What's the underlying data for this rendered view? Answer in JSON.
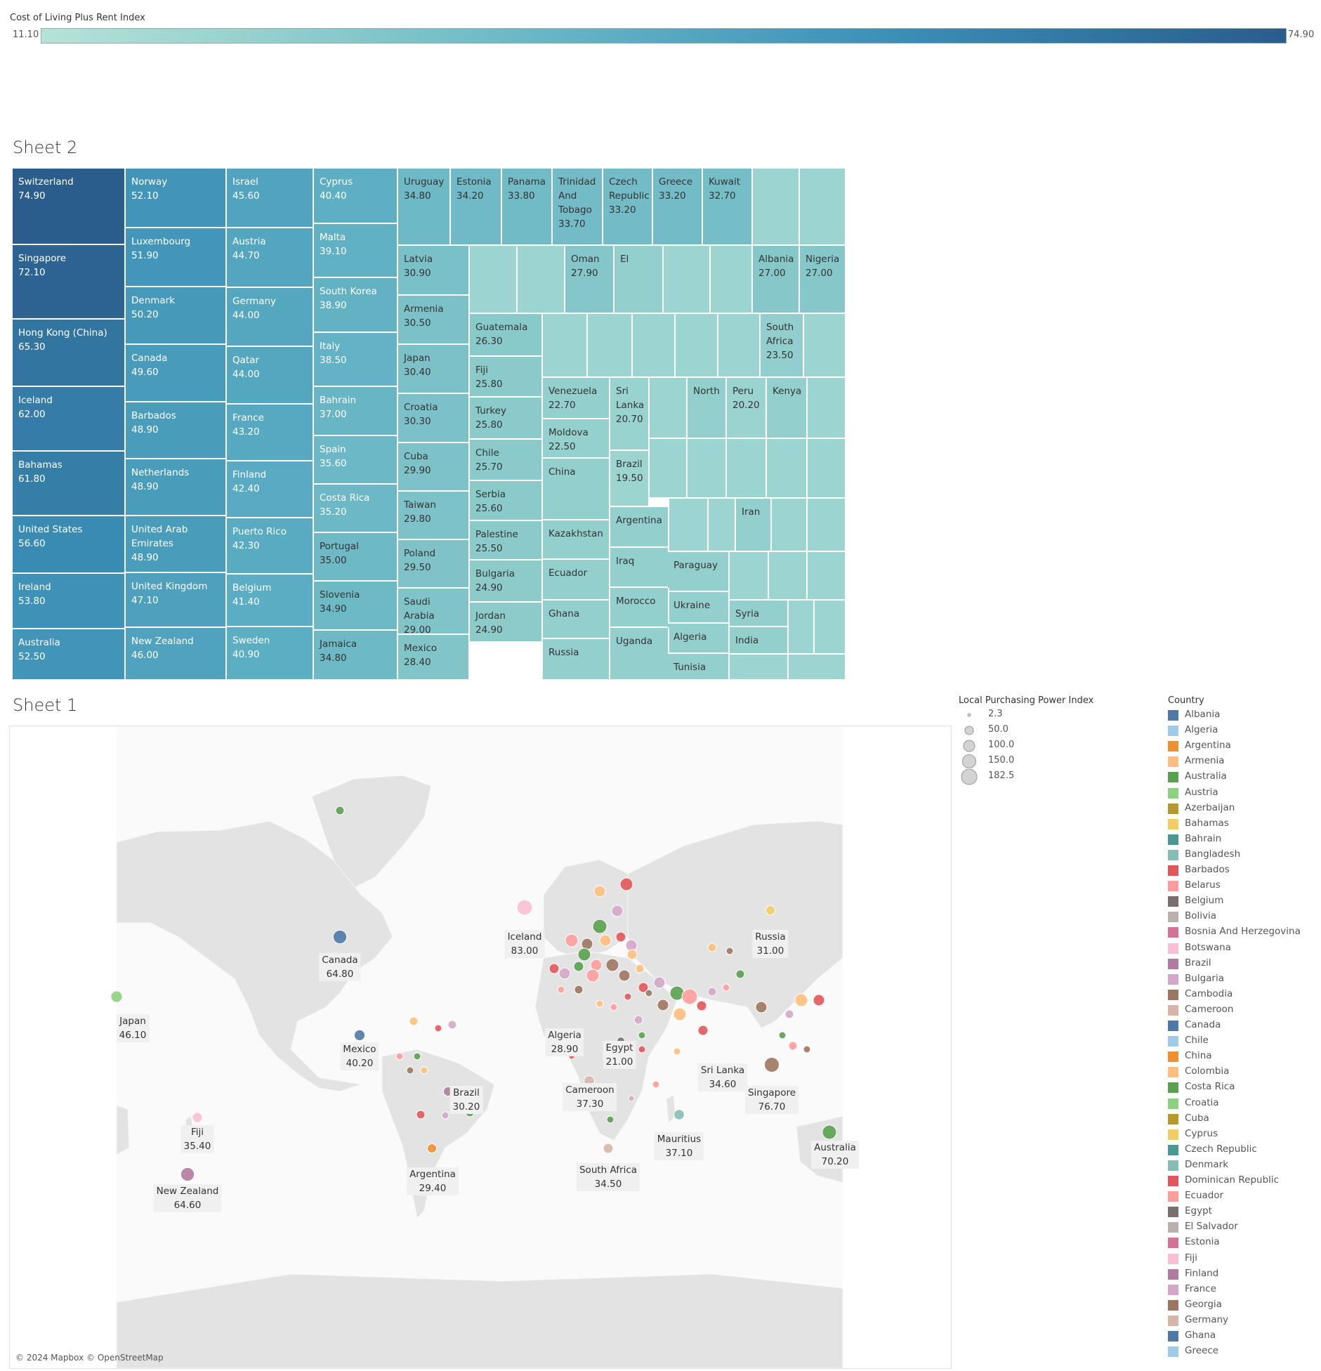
{
  "colorbar": {
    "title": "Cost of Living Plus Rent Index",
    "min": "11.10",
    "max": "74.90"
  },
  "sheet2": {
    "title": "Sheet 2"
  },
  "sheet1": {
    "title": "Sheet 1",
    "credit": "© 2024 Mapbox © OpenStreetMap"
  },
  "chart_data": [
    {
      "type": "treemap",
      "title": "Sheet 2",
      "measure": "Cost of Living Plus Rent Index",
      "color_range": [
        11.1,
        74.9
      ],
      "items": [
        {
          "name": "Switzerland",
          "value": 74.9
        },
        {
          "name": "Singapore",
          "value": 72.1
        },
        {
          "name": "Hong Kong (China)",
          "value": 65.3
        },
        {
          "name": "Iceland",
          "value": 62.0
        },
        {
          "name": "Bahamas",
          "value": 61.8
        },
        {
          "name": "United States",
          "value": 56.6
        },
        {
          "name": "Ireland",
          "value": 53.8
        },
        {
          "name": "Australia",
          "value": 52.5
        },
        {
          "name": "Norway",
          "value": 52.1
        },
        {
          "name": "Luxembourg",
          "value": 51.9
        },
        {
          "name": "Denmark",
          "value": 50.2
        },
        {
          "name": "Canada",
          "value": 49.6
        },
        {
          "name": "Barbados",
          "value": 48.9
        },
        {
          "name": "Netherlands",
          "value": 48.9
        },
        {
          "name": "United Arab Emirates",
          "value": 48.9
        },
        {
          "name": "United Kingdom",
          "value": 47.1
        },
        {
          "name": "New Zealand",
          "value": 46.0
        },
        {
          "name": "Israel",
          "value": 45.6
        },
        {
          "name": "Austria",
          "value": 44.7
        },
        {
          "name": "Germany",
          "value": 44.0
        },
        {
          "name": "Qatar",
          "value": 44.0
        },
        {
          "name": "France",
          "value": 43.2
        },
        {
          "name": "Finland",
          "value": 42.4
        },
        {
          "name": "Puerto Rico",
          "value": 42.3
        },
        {
          "name": "Belgium",
          "value": 41.4
        },
        {
          "name": "Sweden",
          "value": 40.9
        },
        {
          "name": "Cyprus",
          "value": 40.4
        },
        {
          "name": "Malta",
          "value": 39.1
        },
        {
          "name": "South Korea",
          "value": 38.9
        },
        {
          "name": "Italy",
          "value": 38.5
        },
        {
          "name": "Bahrain",
          "value": 37.0
        },
        {
          "name": "Spain",
          "value": 35.6
        },
        {
          "name": "Costa Rica",
          "value": 35.2
        },
        {
          "name": "Portugal",
          "value": 35.0
        },
        {
          "name": "Slovenia",
          "value": 34.9
        },
        {
          "name": "Jamaica",
          "value": 34.8
        },
        {
          "name": "Uruguay",
          "value": 34.8
        },
        {
          "name": "Estonia",
          "value": 34.2
        },
        {
          "name": "Panama",
          "value": 33.8
        },
        {
          "name": "Trinidad And Tobago",
          "value": 33.7
        },
        {
          "name": "Czech Republic",
          "value": 33.2
        },
        {
          "name": "Greece",
          "value": 33.2
        },
        {
          "name": "Kuwait",
          "value": 32.7
        },
        {
          "name": "Latvia",
          "value": 30.9
        },
        {
          "name": "Armenia",
          "value": 30.5
        },
        {
          "name": "Japan",
          "value": 30.4
        },
        {
          "name": "Croatia",
          "value": 30.3
        },
        {
          "name": "Cuba",
          "value": 29.9
        },
        {
          "name": "Taiwan",
          "value": 29.8
        },
        {
          "name": "Poland",
          "value": 29.5
        },
        {
          "name": "Saudi Arabia",
          "value": 29.0
        },
        {
          "name": "Mexico",
          "value": 28.4
        },
        {
          "name": "Oman",
          "value": 27.9
        },
        {
          "name": "El",
          "value": null
        },
        {
          "name": "Albania",
          "value": 27.0
        },
        {
          "name": "Nigeria",
          "value": 27.0
        },
        {
          "name": "Guatemala",
          "value": 26.3
        },
        {
          "name": "Fiji",
          "value": 25.8
        },
        {
          "name": "Turkey",
          "value": 25.8
        },
        {
          "name": "Chile",
          "value": 25.7
        },
        {
          "name": "Serbia",
          "value": 25.6
        },
        {
          "name": "Palestine",
          "value": 25.5
        },
        {
          "name": "Bulgaria",
          "value": 24.9
        },
        {
          "name": "Jordan",
          "value": 24.9
        },
        {
          "name": "South Africa",
          "value": 23.5
        },
        {
          "name": "Venezuela",
          "value": 22.7
        },
        {
          "name": "Moldova",
          "value": 22.5
        },
        {
          "name": "Sri Lanka",
          "value": 20.7
        },
        {
          "name": "Peru",
          "value": 20.2
        },
        {
          "name": "Brazil",
          "value": 19.5
        },
        {
          "name": "North",
          "value": null
        },
        {
          "name": "Kenya",
          "value": null
        },
        {
          "name": "China",
          "value": null
        },
        {
          "name": "Kazakhstan",
          "value": null
        },
        {
          "name": "Iran",
          "value": null
        },
        {
          "name": "Argentina",
          "value": null
        },
        {
          "name": "Ecuador",
          "value": null
        },
        {
          "name": "Iraq",
          "value": null
        },
        {
          "name": "Paraguay",
          "value": null
        },
        {
          "name": "Ukraine",
          "value": null
        },
        {
          "name": "Ghana",
          "value": null
        },
        {
          "name": "Morocco",
          "value": null
        },
        {
          "name": "Algeria",
          "value": null
        },
        {
          "name": "Syria",
          "value": null
        },
        {
          "name": "India",
          "value": null
        },
        {
          "name": "Russia",
          "value": null
        },
        {
          "name": "Uganda",
          "value": null
        },
        {
          "name": "Tunisia",
          "value": null
        }
      ]
    },
    {
      "type": "symbol-map",
      "title": "Sheet 1",
      "size_measure": "Local Purchasing Power Index",
      "size_legend": [
        "2.3",
        "50.0",
        "100.0",
        "150.0",
        "182.5"
      ],
      "labeled_points": [
        {
          "name": "Japan",
          "value": "46.10"
        },
        {
          "name": "Canada",
          "value": "64.80"
        },
        {
          "name": "Iceland",
          "value": "83.00"
        },
        {
          "name": "Russia",
          "value": "31.00"
        },
        {
          "name": "Mexico",
          "value": "40.20"
        },
        {
          "name": "Algeria",
          "value": "28.90"
        },
        {
          "name": "Egypt",
          "value": "21.00"
        },
        {
          "name": "Sri Lanka",
          "value": "34.60"
        },
        {
          "name": "Singapore",
          "value": "76.70"
        },
        {
          "name": "Cameroon",
          "value": "37.30"
        },
        {
          "name": "Fiji",
          "value": "35.40"
        },
        {
          "name": "Brazil",
          "value": "30.20"
        },
        {
          "name": "Mauritius",
          "value": "37.10"
        },
        {
          "name": "Australia",
          "value": "70.20"
        },
        {
          "name": "New Zealand",
          "value": "64.60"
        },
        {
          "name": "Argentina",
          "value": "29.40"
        },
        {
          "name": "South Africa",
          "value": "34.50"
        }
      ]
    }
  ],
  "legend": {
    "size_title": "Local Purchasing Power Index",
    "country_title": "Country",
    "countries": [
      {
        "name": "Albania",
        "color": "#4e79a7"
      },
      {
        "name": "Algeria",
        "color": "#a0cbe8"
      },
      {
        "name": "Argentina",
        "color": "#f28e2b"
      },
      {
        "name": "Armenia",
        "color": "#ffbe7d"
      },
      {
        "name": "Australia",
        "color": "#59a14f"
      },
      {
        "name": "Austria",
        "color": "#8cd17d"
      },
      {
        "name": "Azerbaijan",
        "color": "#b6992d"
      },
      {
        "name": "Bahamas",
        "color": "#f1ce63"
      },
      {
        "name": "Bahrain",
        "color": "#499894"
      },
      {
        "name": "Bangladesh",
        "color": "#86bcb6"
      },
      {
        "name": "Barbados",
        "color": "#e15759"
      },
      {
        "name": "Belarus",
        "color": "#ff9d9a"
      },
      {
        "name": "Belgium",
        "color": "#79706e"
      },
      {
        "name": "Bolivia",
        "color": "#bab0ac"
      },
      {
        "name": "Bosnia And Herzegovina",
        "color": "#d37295"
      },
      {
        "name": "Botswana",
        "color": "#fabfd2"
      },
      {
        "name": "Brazil",
        "color": "#b07aa1"
      },
      {
        "name": "Bulgaria",
        "color": "#d4a6c8"
      },
      {
        "name": "Cambodia",
        "color": "#9d7660"
      },
      {
        "name": "Cameroon",
        "color": "#d7b5a6"
      },
      {
        "name": "Canada",
        "color": "#4e79a7"
      },
      {
        "name": "Chile",
        "color": "#a0cbe8"
      },
      {
        "name": "China",
        "color": "#f28e2b"
      },
      {
        "name": "Colombia",
        "color": "#ffbe7d"
      },
      {
        "name": "Costa Rica",
        "color": "#59a14f"
      },
      {
        "name": "Croatia",
        "color": "#8cd17d"
      },
      {
        "name": "Cuba",
        "color": "#b6992d"
      },
      {
        "name": "Cyprus",
        "color": "#f1ce63"
      },
      {
        "name": "Czech Republic",
        "color": "#499894"
      },
      {
        "name": "Denmark",
        "color": "#86bcb6"
      },
      {
        "name": "Dominican Republic",
        "color": "#e15759"
      },
      {
        "name": "Ecuador",
        "color": "#ff9d9a"
      },
      {
        "name": "Egypt",
        "color": "#79706e"
      },
      {
        "name": "El Salvador",
        "color": "#bab0ac"
      },
      {
        "name": "Estonia",
        "color": "#d37295"
      },
      {
        "name": "Fiji",
        "color": "#fabfd2"
      },
      {
        "name": "Finland",
        "color": "#b07aa1"
      },
      {
        "name": "France",
        "color": "#d4a6c8"
      },
      {
        "name": "Georgia",
        "color": "#9d7660"
      },
      {
        "name": "Germany",
        "color": "#d7b5a6"
      },
      {
        "name": "Ghana",
        "color": "#4e79a7"
      },
      {
        "name": "Greece",
        "color": "#a0cbe8"
      }
    ]
  }
}
